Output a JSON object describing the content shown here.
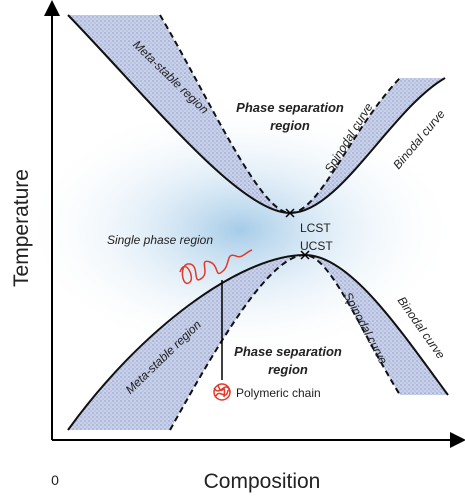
{
  "axes": {
    "y_label": "Temperature",
    "x_label": "Composition",
    "origin": "0"
  },
  "upper": {
    "metastable_label": "Meta-stable region",
    "phase_separation_lines": [
      "Phase separation",
      "region"
    ],
    "spinodal_label": "Spinodal curve",
    "binodal_label": "Binodal curve",
    "critical_label": "LCST"
  },
  "lower": {
    "metastable_label": "Meta-stable region",
    "phase_separation_lines": [
      "Phase separation",
      "region"
    ],
    "spinodal_label": "Spinodal curve",
    "binodal_label": "Binodal curve",
    "critical_label": "UCST"
  },
  "single_phase_label": "Single phase region",
  "polymer_label": "Polymeric chain"
}
